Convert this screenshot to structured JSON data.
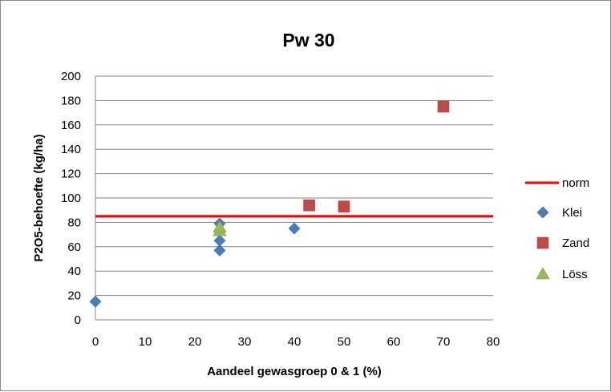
{
  "chart_data": {
    "type": "scatter",
    "title": "Pw 30",
    "xlabel": "Aandeel gewasgroep 0 & 1 (%)",
    "ylabel": "P2O5-behoefte (kg/ha)",
    "xlim": [
      0,
      80
    ],
    "ylim": [
      0,
      200
    ],
    "xticks": [
      "0",
      "10",
      "20",
      "30",
      "40",
      "50",
      "60",
      "70",
      "80"
    ],
    "yticks": [
      "0",
      "20",
      "40",
      "60",
      "80",
      "100",
      "120",
      "140",
      "160",
      "180",
      "200"
    ],
    "grid": "horizontal",
    "legend_position": "right",
    "norm": {
      "name": "norm",
      "value": 85,
      "color": "#ff0000"
    },
    "series": [
      {
        "name": "Klei",
        "marker": "diamond",
        "color": "#4a7ebb",
        "points": [
          [
            0,
            15
          ],
          [
            25,
            57
          ],
          [
            25,
            65
          ],
          [
            25,
            79
          ],
          [
            40,
            75
          ]
        ]
      },
      {
        "name": "Zand",
        "marker": "square",
        "color": "#be4b48",
        "points": [
          [
            43,
            94
          ],
          [
            50,
            93
          ],
          [
            70,
            175
          ]
        ]
      },
      {
        "name": "Löss",
        "marker": "triangle",
        "color": "#98b954",
        "points": [
          [
            25,
            73
          ],
          [
            25,
            76
          ]
        ]
      }
    ]
  }
}
